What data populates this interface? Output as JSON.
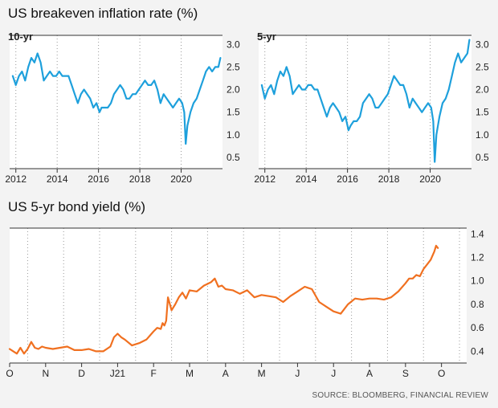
{
  "headings": {
    "breakeven": "US breakeven inflation rate (%)",
    "bond": "US 5-yr bond yield (%)"
  },
  "source": "SOURCE: BLOOMBERG, FINANCIAL REVIEW",
  "colors": {
    "breakeven_line": "#1ea0dc",
    "bond_line": "#f07020",
    "background": "#f3f3f3",
    "plot_background": "#ffffff",
    "axis": "#333333",
    "gridline": "#999999"
  },
  "chart_data": [
    {
      "type": "line",
      "label": "10-yr",
      "x_unit": "year",
      "xlim": [
        2011.7,
        2022.0
      ],
      "ylim": [
        0.25,
        3.2
      ],
      "y_ticks": [
        0.5,
        1.0,
        1.5,
        2.0,
        2.5,
        3.0
      ],
      "y_tick_labels": [
        "0.5",
        "1.0",
        "1.5",
        "2.0",
        "2.5",
        "3.0"
      ],
      "x_ticks": [
        2012,
        2014,
        2016,
        2018,
        2020
      ],
      "x_tick_labels": [
        "2012",
        "2014",
        "2016",
        "2018",
        "2020"
      ],
      "grid": "vertical dotted at year boundaries",
      "series": [
        {
          "x": [
            2011.85,
            2012.0,
            2012.15,
            2012.3,
            2012.45,
            2012.6,
            2012.75,
            2012.9,
            2013.05,
            2013.2,
            2013.35,
            2013.5,
            2013.65,
            2013.8,
            2013.95,
            2014.1,
            2014.25,
            2014.4,
            2014.55,
            2014.7,
            2014.85,
            2015.0,
            2015.15,
            2015.3,
            2015.45,
            2015.6,
            2015.75,
            2015.9,
            2016.05,
            2016.15,
            2016.3,
            2016.45,
            2016.6,
            2016.75,
            2016.9,
            2017.05,
            2017.2,
            2017.35,
            2017.5,
            2017.65,
            2017.8,
            2017.95,
            2018.1,
            2018.25,
            2018.4,
            2018.55,
            2018.7,
            2018.85,
            2019.0,
            2019.15,
            2019.3,
            2019.45,
            2019.6,
            2019.75,
            2019.9,
            2020.05,
            2020.15,
            2020.22,
            2020.3,
            2020.45,
            2020.6,
            2020.75,
            2020.9,
            2021.05,
            2021.2,
            2021.35,
            2021.5,
            2021.65,
            2021.8,
            2021.9
          ],
          "y": [
            2.3,
            2.1,
            2.3,
            2.4,
            2.2,
            2.5,
            2.7,
            2.6,
            2.8,
            2.6,
            2.2,
            2.3,
            2.4,
            2.3,
            2.3,
            2.4,
            2.3,
            2.3,
            2.3,
            2.1,
            1.9,
            1.7,
            1.9,
            2.0,
            1.9,
            1.8,
            1.6,
            1.7,
            1.5,
            1.6,
            1.6,
            1.6,
            1.7,
            1.9,
            2.0,
            2.1,
            2.0,
            1.8,
            1.8,
            1.9,
            1.9,
            2.0,
            2.1,
            2.2,
            2.1,
            2.1,
            2.2,
            2.0,
            1.7,
            1.9,
            1.8,
            1.7,
            1.6,
            1.7,
            1.8,
            1.7,
            1.5,
            0.8,
            1.2,
            1.5,
            1.7,
            1.8,
            2.0,
            2.2,
            2.4,
            2.5,
            2.4,
            2.5,
            2.5,
            2.7
          ]
        }
      ]
    },
    {
      "type": "line",
      "label": "5-yr",
      "x_unit": "year",
      "xlim": [
        2011.7,
        2022.0
      ],
      "ylim": [
        0.25,
        3.2
      ],
      "y_ticks": [
        0.5,
        1.0,
        1.5,
        2.0,
        2.5,
        3.0
      ],
      "y_tick_labels": [
        "0.5",
        "1.0",
        "1.5",
        "2.0",
        "2.5",
        "3.0"
      ],
      "x_ticks": [
        2012,
        2014,
        2016,
        2018,
        2020
      ],
      "x_tick_labels": [
        "2012",
        "2014",
        "2016",
        "2018",
        "2020"
      ],
      "grid": "vertical dotted at year boundaries",
      "series": [
        {
          "x": [
            2011.85,
            2012.0,
            2012.15,
            2012.3,
            2012.45,
            2012.6,
            2012.75,
            2012.9,
            2013.05,
            2013.2,
            2013.35,
            2013.5,
            2013.65,
            2013.8,
            2013.95,
            2014.1,
            2014.25,
            2014.4,
            2014.55,
            2014.7,
            2014.85,
            2015.0,
            2015.15,
            2015.3,
            2015.45,
            2015.6,
            2015.75,
            2015.9,
            2016.05,
            2016.15,
            2016.3,
            2016.45,
            2016.6,
            2016.75,
            2016.9,
            2017.05,
            2017.2,
            2017.35,
            2017.5,
            2017.65,
            2017.8,
            2017.95,
            2018.1,
            2018.25,
            2018.4,
            2018.55,
            2018.7,
            2018.85,
            2019.0,
            2019.15,
            2019.3,
            2019.45,
            2019.6,
            2019.75,
            2019.9,
            2020.05,
            2020.15,
            2020.22,
            2020.3,
            2020.45,
            2020.6,
            2020.75,
            2020.9,
            2021.05,
            2021.2,
            2021.35,
            2021.5,
            2021.65,
            2021.8,
            2021.9
          ],
          "y": [
            2.1,
            1.8,
            2.0,
            2.1,
            1.9,
            2.2,
            2.4,
            2.3,
            2.5,
            2.3,
            1.9,
            2.0,
            2.1,
            2.0,
            2.0,
            2.1,
            2.1,
            2.0,
            2.0,
            1.8,
            1.6,
            1.4,
            1.6,
            1.7,
            1.6,
            1.5,
            1.3,
            1.4,
            1.1,
            1.2,
            1.3,
            1.3,
            1.4,
            1.7,
            1.8,
            1.9,
            1.8,
            1.6,
            1.6,
            1.7,
            1.8,
            1.9,
            2.1,
            2.3,
            2.2,
            2.1,
            2.1,
            1.9,
            1.6,
            1.8,
            1.7,
            1.6,
            1.5,
            1.6,
            1.7,
            1.6,
            1.3,
            0.4,
            1.0,
            1.4,
            1.7,
            1.8,
            2.0,
            2.3,
            2.6,
            2.8,
            2.6,
            2.7,
            2.8,
            3.1
          ]
        }
      ]
    },
    {
      "type": "line",
      "label": "",
      "x_unit": "months, Oct 2020 to Oct 2021",
      "xlim": [
        0,
        12.7
      ],
      "ylim": [
        0.3,
        1.45
      ],
      "y_ticks": [
        0.4,
        0.6,
        0.8,
        1.0,
        1.2,
        1.4
      ],
      "y_tick_labels": [
        "0.4",
        "0.6",
        "0.8",
        "1.0",
        "1.2",
        "1.4"
      ],
      "x_ticks": [
        0,
        1,
        2,
        3,
        4,
        5,
        6,
        7,
        8,
        9,
        10,
        11,
        12
      ],
      "x_tick_labels": [
        "O",
        "N",
        "D",
        "J21",
        "F",
        "M",
        "A",
        "M",
        "J",
        "J",
        "A",
        "S",
        "O"
      ],
      "grid": "vertical dotted at month boundaries",
      "series": [
        {
          "x": [
            0.0,
            0.1,
            0.2,
            0.3,
            0.4,
            0.5,
            0.6,
            0.7,
            0.8,
            0.9,
            1.0,
            1.2,
            1.4,
            1.6,
            1.8,
            2.0,
            2.2,
            2.4,
            2.6,
            2.8,
            2.9,
            3.0,
            3.1,
            3.2,
            3.4,
            3.6,
            3.8,
            4.0,
            4.1,
            4.2,
            4.25,
            4.3,
            4.35,
            4.4,
            4.5,
            4.6,
            4.7,
            4.8,
            4.9,
            5.0,
            5.2,
            5.4,
            5.6,
            5.7,
            5.8,
            5.9,
            6.0,
            6.2,
            6.4,
            6.6,
            6.8,
            7.0,
            7.2,
            7.4,
            7.6,
            7.8,
            8.0,
            8.2,
            8.4,
            8.6,
            8.8,
            9.0,
            9.2,
            9.4,
            9.6,
            9.8,
            10.0,
            10.2,
            10.4,
            10.6,
            10.8,
            11.0,
            11.1,
            11.2,
            11.3,
            11.4,
            11.5,
            11.6,
            11.7,
            11.8,
            11.85,
            11.9
          ],
          "y": [
            0.42,
            0.4,
            0.38,
            0.43,
            0.38,
            0.42,
            0.48,
            0.43,
            0.42,
            0.44,
            0.43,
            0.42,
            0.43,
            0.44,
            0.41,
            0.41,
            0.42,
            0.4,
            0.4,
            0.44,
            0.52,
            0.55,
            0.52,
            0.5,
            0.45,
            0.47,
            0.5,
            0.57,
            0.6,
            0.59,
            0.64,
            0.62,
            0.66,
            0.86,
            0.75,
            0.8,
            0.86,
            0.9,
            0.85,
            0.92,
            0.91,
            0.96,
            0.99,
            1.02,
            0.95,
            0.96,
            0.93,
            0.92,
            0.89,
            0.92,
            0.86,
            0.88,
            0.87,
            0.86,
            0.82,
            0.87,
            0.91,
            0.95,
            0.93,
            0.82,
            0.78,
            0.74,
            0.72,
            0.8,
            0.85,
            0.84,
            0.85,
            0.85,
            0.84,
            0.86,
            0.91,
            0.98,
            1.02,
            1.02,
            1.05,
            1.04,
            1.1,
            1.14,
            1.18,
            1.25,
            1.3,
            1.28
          ]
        }
      ]
    }
  ]
}
